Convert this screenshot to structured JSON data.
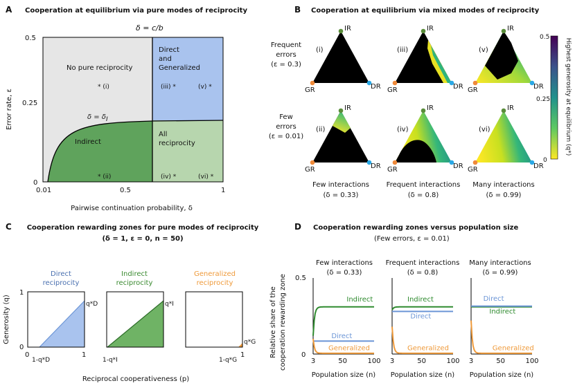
{
  "colors": {
    "gray": "#e6e6e6",
    "blue": "#a9c3ee",
    "green_dark": "#5fa35c",
    "green_light": "#b7d6ae",
    "direct": "#6b95d6",
    "indirect": "#2e8a2e",
    "generalized": "#ef9a3a",
    "black": "#000000"
  },
  "panelA": {
    "letter": "A",
    "title": "Cooperation at equilibrium via pure modes of reciprocity",
    "top_label": "δ = c/b",
    "region_no": "No pure reciprocity",
    "region_dg1": "Direct",
    "region_dg2": "and",
    "region_dg3": "Generalized",
    "region_indirect": "Indirect",
    "region_all1": "All",
    "region_all2": "reciprocity",
    "delta_l": "δ = δ",
    "delta_l_sub": "I",
    "pt_i": "* (i)",
    "pt_ii": "* (ii)",
    "pt_iii": "(iii) *",
    "pt_iv": "(iv) *",
    "pt_v": "(v) *",
    "pt_vi": "(vi) *",
    "yaxis": "Error rate, ε",
    "ytick_05": "0.5",
    "ytick_025": "0.25",
    "ytick_0": "0",
    "xtick_001": "0.01",
    "xtick_05": "0.5",
    "xtick_1": "1",
    "xaxis": "Pairwise continuation probability, δ"
  },
  "panelB": {
    "letter": "B",
    "title": "Cooperation at equilibrium via mixed modes of reciprocity",
    "row1_a": "Frequent",
    "row1_b": "errors",
    "row1_c": "(ε = 0.3)",
    "row2_a": "Few",
    "row2_b": "errors",
    "row2_c": "(ε = 0.01)",
    "IR": "IR",
    "GR": "GR",
    "DR": "DR",
    "tri_labels": [
      "(i)",
      "(iii)",
      "(v)",
      "(ii)",
      "(iv)",
      "(vi)"
    ],
    "col1_a": "Few interactions",
    "col1_b": "(δ = 0.33)",
    "col2_a": "Frequent interactions",
    "col2_b": "(δ = 0.8)",
    "col3_a": "Many interactions",
    "col3_b": "(δ = 0.99)",
    "cbar_label": "Highest generosity at equilibrium (q*)",
    "cbar_max": "0.5",
    "cbar_mid": "0.25",
    "cbar_min": "0"
  },
  "panelC": {
    "letter": "C",
    "title": "Cooperation rewarding zones for pure modes of reciprocity",
    "subtitle": "(δ = 1, ε = 0, n = 50)",
    "t1a": "Direct",
    "t1b": "reciprocity",
    "t2a": "Indirect",
    "t2b": "reciprocity",
    "t3a": "Generalized",
    "t3b": "reciprocity",
    "yaxis": "Generosity (q)",
    "y1": "1",
    "y0": "0",
    "x0": "0",
    "x1": "1",
    "qD": "q*D",
    "qI": "q*I",
    "qG": "q*G",
    "xD": "1-q*D",
    "xI": "1-q*I",
    "xG": "1-q*G",
    "xaxis": "Reciprocal cooperativeness (p)"
  },
  "panelD": {
    "letter": "D",
    "title": "Cooperation rewarding zones versus population size",
    "subtitle": "(Few errors, ε = 0.01)",
    "col1_a": "Few interactions",
    "col1_b": "(δ = 0.33)",
    "col2_a": "Frequent interactions",
    "col2_b": "(δ = 0.8)",
    "col3_a": "Many interactions",
    "col3_b": "(δ = 0.99)",
    "yaxis1": "Relative share of the",
    "yaxis2": "cooperation rewarding zone",
    "ytick_05": "0.5",
    "ytick_0": "0",
    "xt_3": "3",
    "xt_50": "50",
    "xt_100": "100",
    "xaxis": "Population size (n)",
    "lbl_indirect": "Indirect",
    "lbl_direct": "Direct",
    "lbl_generalized": "Generalized"
  },
  "chart_data": [
    {
      "type": "line",
      "title": "Few interactions (δ = 0.33)",
      "xlabel": "Population size (n)",
      "ylabel": "Relative share of the cooperation rewarding zone",
      "xlim": [
        3,
        100
      ],
      "ylim": [
        0,
        0.5
      ],
      "series": [
        {
          "name": "Indirect",
          "plateau": 0.31,
          "start": 0.12
        },
        {
          "name": "Direct",
          "plateau": 0.085,
          "start": 0.085
        },
        {
          "name": "Generalized",
          "plateau": 0.005,
          "start": 0.1
        }
      ]
    },
    {
      "type": "line",
      "title": "Frequent interactions (δ = 0.8)",
      "xlabel": "Population size (n)",
      "xlim": [
        3,
        100
      ],
      "ylim": [
        0,
        0.5
      ],
      "series": [
        {
          "name": "Indirect",
          "plateau": 0.31,
          "start": 0.29
        },
        {
          "name": "Direct",
          "plateau": 0.28,
          "start": 0.28
        },
        {
          "name": "Generalized",
          "plateau": 0.005,
          "start": 0.18
        }
      ]
    },
    {
      "type": "line",
      "title": "Many interactions (δ = 0.99)",
      "xlabel": "Population size (n)",
      "xlim": [
        3,
        100
      ],
      "ylim": [
        0,
        0.5
      ],
      "series": [
        {
          "name": "Indirect",
          "plateau": 0.31,
          "start": 0.31
        },
        {
          "name": "Direct",
          "plateau": 0.315,
          "start": 0.315
        },
        {
          "name": "Generalized",
          "plateau": 0.005,
          "start": 0.22
        }
      ]
    }
  ]
}
